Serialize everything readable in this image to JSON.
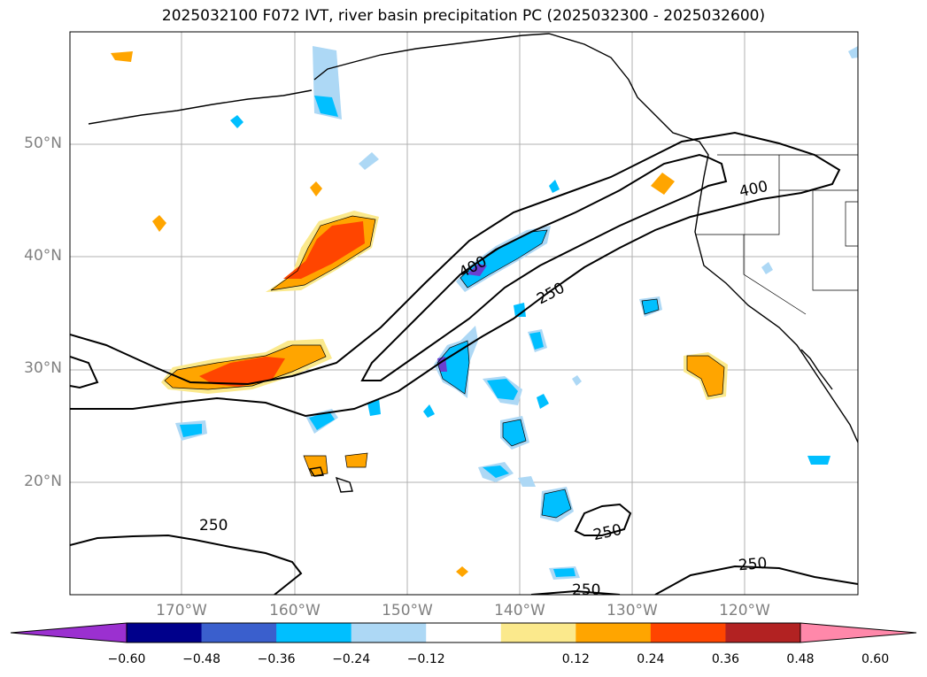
{
  "title": "2025032100 F072 IVT, river basin precipitation PC (2025032300 - 2025032600)",
  "lat_labels": [
    "50°N",
    "40°N",
    "30°N",
    "20°N"
  ],
  "lon_labels": [
    "170°W",
    "160°W",
    "150°W",
    "140°W",
    "130°W",
    "120°W"
  ],
  "contour_labels": [
    "400",
    "400",
    "250",
    "250",
    "250",
    "250",
    "250"
  ],
  "colorbar": {
    "tick_labels": [
      "−0.60",
      "−0.48",
      "−0.36",
      "−0.24",
      "−0.12",
      "0.12",
      "0.24",
      "0.36",
      "0.48",
      "0.60"
    ],
    "colors": [
      "#9b30d0",
      "#00008b",
      "#3a5fcd",
      "#00bfff",
      "#add8f5",
      "#ffffff",
      "#fbe98c",
      "#ffa500",
      "#ff4500",
      "#b22222",
      "#ff88aa"
    ]
  },
  "colors": {
    "orange": "#ffa500",
    "red_orange": "#ff4500",
    "yellow": "#fbe98c",
    "cyan": "#00bfff",
    "light_blue": "#add8f5",
    "purple": "#6a3fd0"
  }
}
